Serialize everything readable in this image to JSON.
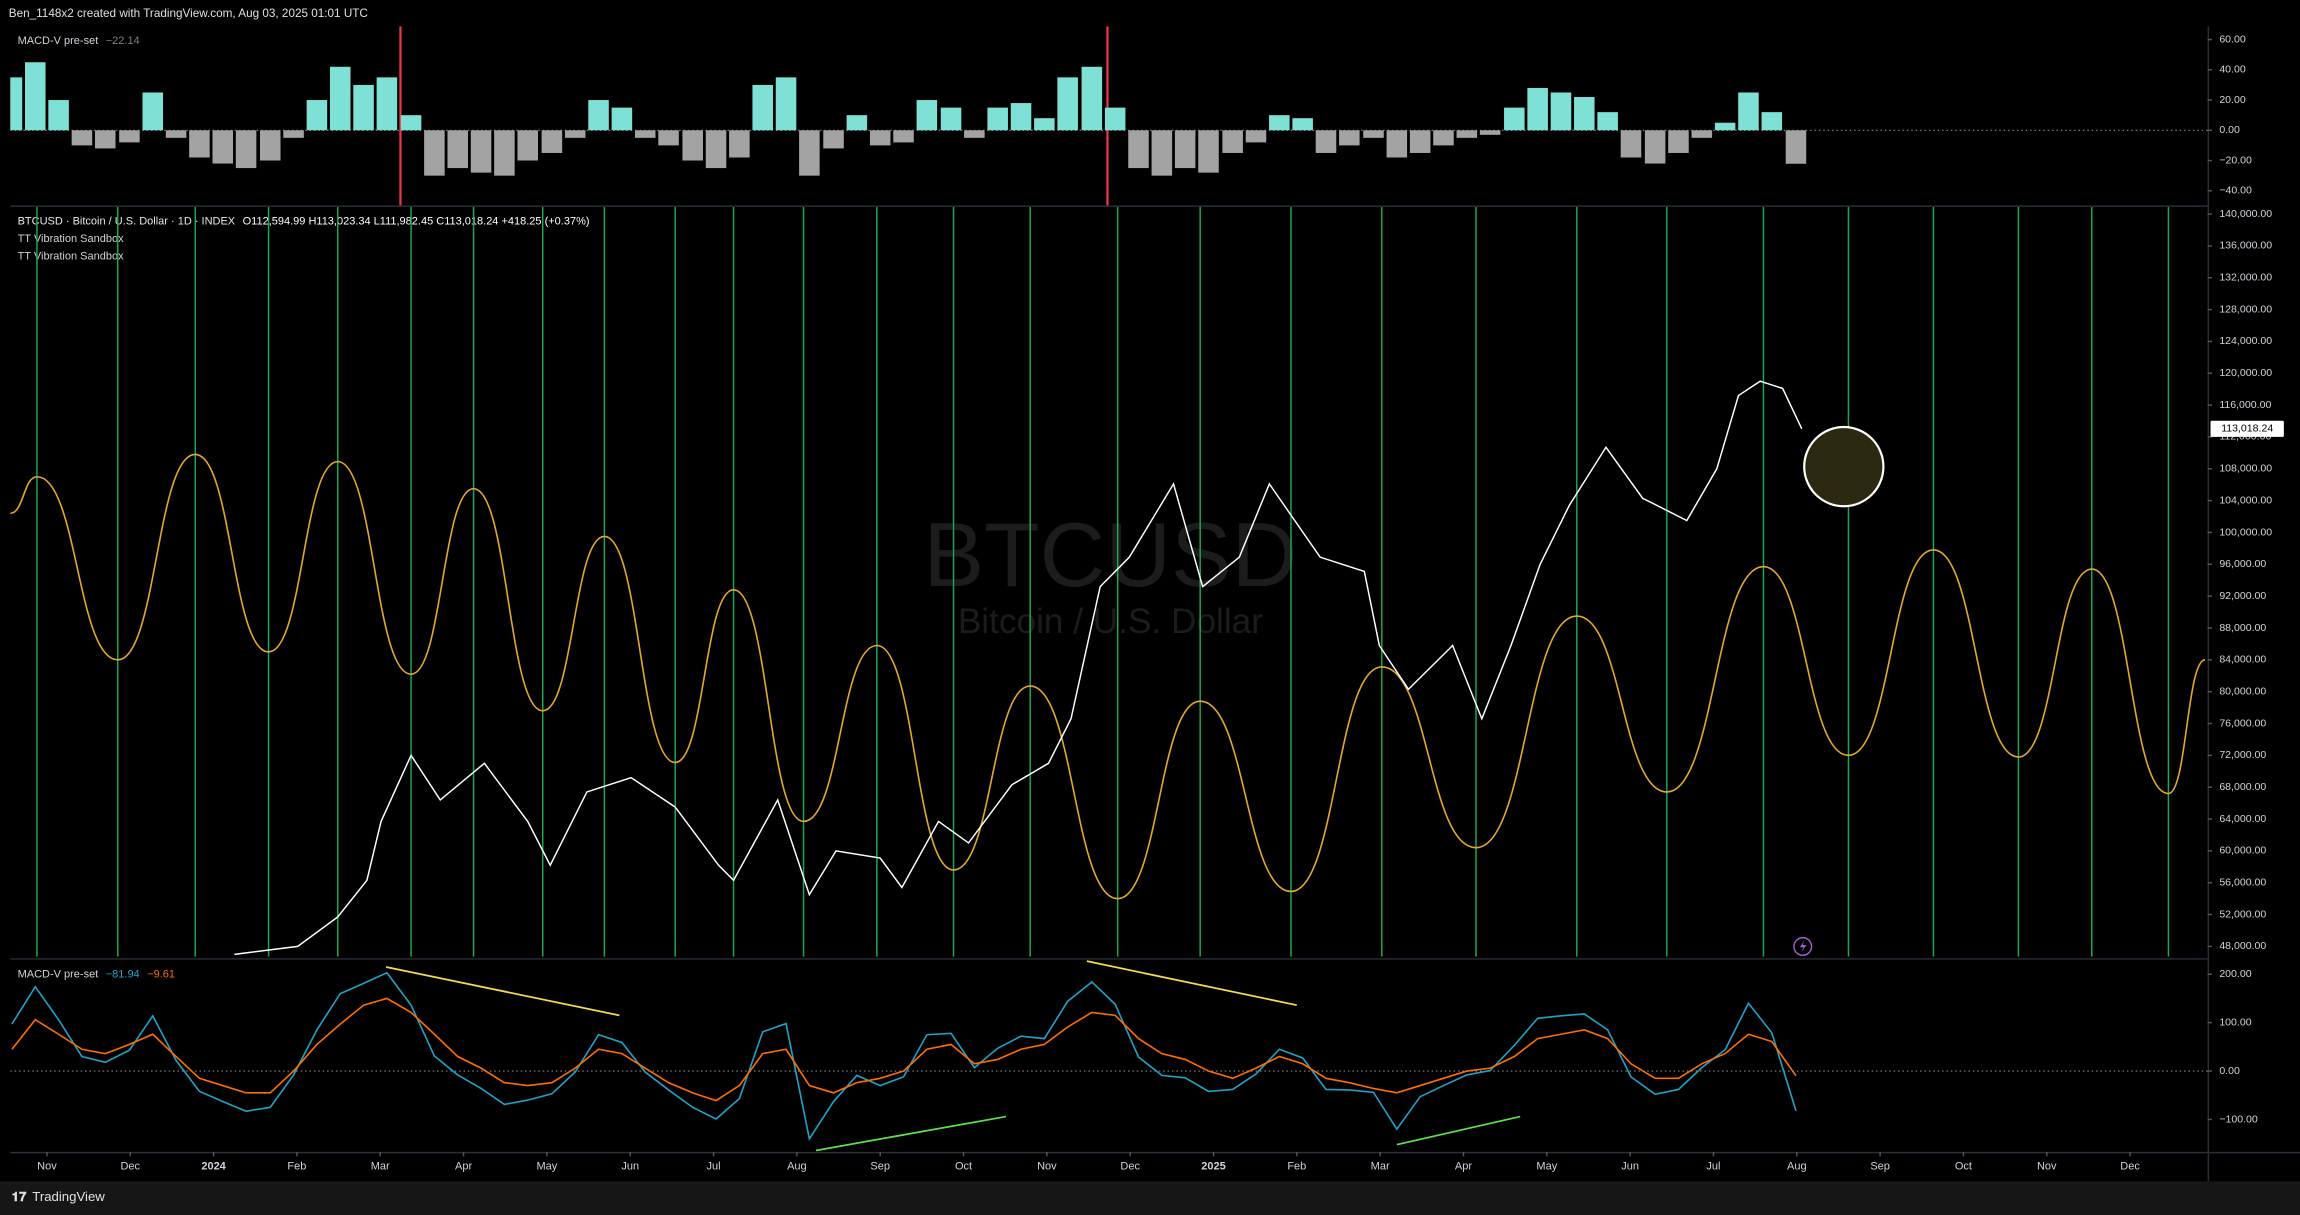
{
  "header": "Ben_1148x2 created with TradingView.com, Aug 03, 2025 01:01 UTC",
  "footer": "TradingView",
  "chart_data": [
    {
      "type": "bar",
      "title": "MACD-V pre-set",
      "last": {
        "value": -22.14,
        "label": "−22.14"
      },
      "colors": {
        "positive": "#7fe0d5",
        "negative": "#a3a3a3"
      },
      "xlim": [
        -0.44,
        25.93
      ],
      "ylim": [
        -49.7,
        68.7
      ],
      "yticks": [
        {
          "value": 60,
          "label": "60.00"
        },
        {
          "value": 40,
          "label": "40.00"
        },
        {
          "value": 20,
          "label": "20.00"
        },
        {
          "value": 0,
          "label": "0.00"
        },
        {
          "value": -20,
          "label": "−20.00"
        },
        {
          "value": -40,
          "label": "−40.00"
        }
      ],
      "x": [
        -0.42,
        -0.14,
        0.14,
        0.42,
        0.7,
        0.99,
        1.27,
        1.55,
        1.83,
        2.11,
        2.39,
        2.68,
        2.96,
        3.24,
        3.52,
        3.8,
        4.08,
        4.37,
        4.65,
        4.93,
        5.21,
        5.49,
        5.77,
        6.06,
        6.34,
        6.62,
        6.9,
        7.18,
        7.46,
        7.75,
        8.03,
        8.31,
        8.59,
        8.87,
        9.15,
        9.44,
        9.72,
        10.0,
        10.28,
        10.56,
        10.85,
        11.13,
        11.41,
        11.69,
        11.97,
        12.25,
        12.54,
        12.82,
        13.1,
        13.38,
        13.66,
        13.94,
        14.23,
        14.51,
        14.79,
        15.07,
        15.35,
        15.63,
        15.92,
        16.2,
        16.48,
        16.76,
        17.04,
        17.32,
        17.61,
        17.89,
        18.17,
        18.45,
        18.73,
        19.01,
        19.3,
        19.58,
        19.86,
        20.14,
        20.42,
        20.7,
        20.99
      ],
      "values": [
        35,
        45,
        20,
        -10,
        -12,
        -8,
        25,
        -5,
        -18,
        -22,
        -25,
        -20,
        -5,
        20,
        42,
        30,
        35,
        10,
        -30,
        -25,
        -28,
        -30,
        -20,
        -15,
        -5,
        20,
        15,
        -5,
        -10,
        -20,
        -25,
        -18,
        30,
        35,
        -30,
        -12,
        10,
        -10,
        -8,
        20,
        15,
        -5,
        15,
        18,
        8,
        35,
        42,
        15,
        -25,
        -30,
        -25,
        -28,
        -15,
        -8,
        10,
        8,
        -15,
        -10,
        -5,
        -18,
        -15,
        -10,
        -5,
        -3,
        15,
        28,
        25,
        22,
        12,
        -18,
        -22,
        -15,
        -5,
        5,
        25,
        12,
        -22.14
      ]
    },
    {
      "type": "line",
      "symbol": "BTCUSD · Bitcoin / U.S. Dollar · 1D · INDEX",
      "ohlc": "O112,594.99 H113,023.34 L111,982.45 C113,018.24 +418.25 (+0.37%)",
      "watermark": [
        "BTCUSD",
        "Bitcoin / U.S. Dollar"
      ],
      "xlim": [
        -0.44,
        25.93
      ],
      "ylim": [
        46700,
        140900
      ],
      "yticks": [
        {
          "value": 48000,
          "label": "48,000.00"
        },
        {
          "value": 52000,
          "label": "52,000.00"
        },
        {
          "value": 56000,
          "label": "56,000.00"
        },
        {
          "value": 60000,
          "label": "60,000.00"
        },
        {
          "value": 64000,
          "label": "64,000.00"
        },
        {
          "value": 68000,
          "label": "68,000.00"
        },
        {
          "value": 72000,
          "label": "72,000.00"
        },
        {
          "value": 76000,
          "label": "76,000.00"
        },
        {
          "value": 80000,
          "label": "80,000.00"
        },
        {
          "value": 84000,
          "label": "84,000.00"
        },
        {
          "value": 88000,
          "label": "88,000.00"
        },
        {
          "value": 92000,
          "label": "92,000.00"
        },
        {
          "value": 96000,
          "label": "96,000.00"
        },
        {
          "value": 100000,
          "label": "100,000.00"
        },
        {
          "value": 104000,
          "label": "104,000.00"
        },
        {
          "value": 108000,
          "label": "108,000.00"
        },
        {
          "value": 112000,
          "label": "112,000.00"
        },
        {
          "value": 116000,
          "label": "116,000.00"
        },
        {
          "value": 120000,
          "label": "120,000.00"
        },
        {
          "value": 124000,
          "label": "124,000.00"
        },
        {
          "value": 128000,
          "label": "128,000.00"
        },
        {
          "value": 132000,
          "label": "132,000.00"
        },
        {
          "value": 136000,
          "label": "136,000.00"
        },
        {
          "value": 140000,
          "label": "140,000.00"
        }
      ],
      "price": {
        "color": "#ffffff",
        "x": [
          2.25,
          3.01,
          3.49,
          3.84,
          4.01,
          4.37,
          4.72,
          5.25,
          5.77,
          6.04,
          6.48,
          7.01,
          7.54,
          8.06,
          8.24,
          8.77,
          9.15,
          9.47,
          10.0,
          10.26,
          10.7,
          11.06,
          11.58,
          12.02,
          12.29,
          12.64,
          12.99,
          13.52,
          13.87,
          14.31,
          14.67,
          15.28,
          15.81,
          15.99,
          16.34,
          16.87,
          17.22,
          17.57,
          17.92,
          18.27,
          18.71,
          19.15,
          19.68,
          20.04,
          20.3,
          20.56,
          20.83,
          21.06
        ],
        "values": [
          47000,
          48000,
          51700,
          56300,
          63700,
          72000,
          66400,
          71000,
          63700,
          58200,
          67400,
          69200,
          65500,
          58200,
          56300,
          66400,
          54500,
          60000,
          59100,
          55400,
          63700,
          61000,
          68300,
          71000,
          76600,
          93200,
          96900,
          106100,
          93200,
          96900,
          106100,
          96900,
          95100,
          85800,
          80300,
          85800,
          76600,
          85800,
          96000,
          103400,
          110700,
          104300,
          101500,
          108000,
          117200,
          119000,
          118100,
          113018.24
        ],
        "last": {
          "value": 113018.24,
          "label": "113,018.24"
        }
      },
      "series": [
        {
          "name": "TT Vibration Sandbox",
          "color": "#e3a82b",
          "smooth": true,
          "x": [
            -0.44,
            -0.12,
            0.85,
            1.78,
            2.66,
            3.49,
            4.37,
            5.12,
            5.95,
            6.69,
            7.54,
            8.24,
            9.08,
            9.96,
            10.88,
            11.8,
            12.85,
            13.84,
            14.93,
            16.02,
            17.15,
            18.36,
            19.44,
            20.6,
            21.62,
            22.64,
            23.66,
            24.54,
            25.46,
            25.9
          ],
          "values": [
            102400,
            107000,
            84000,
            109800,
            85000,
            108900,
            82200,
            105500,
            77600,
            99500,
            71100,
            92800,
            63700,
            85800,
            57600,
            80700,
            54000,
            78800,
            54900,
            83100,
            60400,
            89500,
            67400,
            95700,
            72000,
            97800,
            71800,
            95400,
            67200,
            84000
          ]
        },
        {
          "name": "TT Vibration Sandbox",
          "color": "#1fa84f",
          "x": [
            -0.12,
            0.85,
            1.78,
            2.66,
            3.49,
            4.37,
            5.12,
            5.95,
            6.69,
            7.54,
            8.24,
            9.08,
            9.96,
            10.88,
            11.8,
            12.85,
            13.84,
            14.93,
            16.02,
            17.15,
            18.36,
            19.44,
            20.6,
            21.62,
            22.64,
            23.66,
            24.54,
            25.46
          ]
        }
      ]
    },
    {
      "type": "line",
      "title": "MACD-V pre-set",
      "xlim": [
        -0.44,
        25.93
      ],
      "ylim": [
        -167,
        227
      ],
      "yticks": [
        {
          "value": 200,
          "label": "200.00"
        },
        {
          "value": 100,
          "label": "100.00"
        },
        {
          "value": 0,
          "label": "0.00"
        },
        {
          "value": -100,
          "label": "−100.00"
        }
      ],
      "xticks": [
        {
          "value": 0,
          "label": "Nov"
        },
        {
          "value": 1,
          "label": "Dec"
        },
        {
          "value": 2,
          "label": "2024"
        },
        {
          "value": 3,
          "label": "Feb"
        },
        {
          "value": 4,
          "label": "Mar"
        },
        {
          "value": 5,
          "label": "Apr"
        },
        {
          "value": 6,
          "label": "May"
        },
        {
          "value": 7,
          "label": "Jun"
        },
        {
          "value": 8,
          "label": "Jul"
        },
        {
          "value": 9,
          "label": "Aug"
        },
        {
          "value": 10,
          "label": "Sep"
        },
        {
          "value": 11,
          "label": "Oct"
        },
        {
          "value": 12,
          "label": "Nov"
        },
        {
          "value": 13,
          "label": "Dec"
        },
        {
          "value": 14,
          "label": "2025"
        },
        {
          "value": 15,
          "label": "Feb"
        },
        {
          "value": 16,
          "label": "Mar"
        },
        {
          "value": 17,
          "label": "Apr"
        },
        {
          "value": 18,
          "label": "May"
        },
        {
          "value": 19,
          "label": "Jun"
        },
        {
          "value": 20,
          "label": "Jul"
        },
        {
          "value": 21,
          "label": "Aug"
        },
        {
          "value": 22,
          "label": "Sep"
        },
        {
          "value": 23,
          "label": "Oct"
        },
        {
          "value": 24,
          "label": "Nov"
        },
        {
          "value": 25,
          "label": "Dec"
        }
      ],
      "series": [
        {
          "color": "#1fa2c7",
          "last": {
            "value": -81.94,
            "label": "−81.94"
          },
          "x": [
            -0.42,
            -0.14,
            0.14,
            0.42,
            0.7,
            0.99,
            1.27,
            1.55,
            1.83,
            2.11,
            2.39,
            2.68,
            2.96,
            3.24,
            3.52,
            3.8,
            4.08,
            4.37,
            4.65,
            4.93,
            5.21,
            5.49,
            5.77,
            6.06,
            6.34,
            6.62,
            6.9,
            7.18,
            7.46,
            7.75,
            8.03,
            8.31,
            8.59,
            8.87,
            9.15,
            9.44,
            9.72,
            10.0,
            10.28,
            10.56,
            10.85,
            11.13,
            11.41,
            11.69,
            11.97,
            12.25,
            12.54,
            12.82,
            13.1,
            13.38,
            13.66,
            13.94,
            14.23,
            14.51,
            14.79,
            15.07,
            15.35,
            15.63,
            15.92,
            16.2,
            16.48,
            16.76,
            17.04,
            17.32,
            17.61,
            17.89,
            18.17,
            18.45,
            18.73,
            19.01,
            19.3,
            19.58,
            19.86,
            20.14,
            20.42,
            20.7,
            20.99
          ],
          "values": [
            97,
            174,
            106,
            30,
            18,
            43,
            114,
            22,
            -42,
            -63,
            -83,
            -75,
            -8,
            85,
            160,
            181,
            203,
            136,
            31,
            -8,
            -36,
            -69,
            -60,
            -47,
            -2,
            75,
            59,
            -2,
            -39,
            -75,
            -99,
            -57,
            81,
            98,
            -140,
            -63,
            -9,
            -30,
            -12,
            75,
            78,
            7,
            47,
            72,
            67,
            144,
            184,
            138,
            29,
            -9,
            -14,
            -42,
            -38,
            -6,
            45,
            27,
            -38,
            -39,
            -44,
            -120,
            -53,
            -30,
            -8,
            1,
            53,
            109,
            114,
            118,
            85,
            -12,
            -48,
            -38,
            7,
            44,
            140,
            79,
            -81.94
          ]
        },
        {
          "color": "#ff6d00",
          "last": {
            "value": -9.61,
            "label": "−9.61"
          },
          "x": [
            -0.42,
            -0.14,
            0.14,
            0.42,
            0.7,
            0.99,
            1.27,
            1.55,
            1.83,
            2.11,
            2.39,
            2.68,
            2.96,
            3.24,
            3.52,
            3.8,
            4.08,
            4.37,
            4.65,
            4.93,
            5.21,
            5.49,
            5.77,
            6.06,
            6.34,
            6.62,
            6.9,
            7.18,
            7.46,
            7.75,
            8.03,
            8.31,
            8.59,
            8.87,
            9.15,
            9.44,
            9.72,
            10.0,
            10.28,
            10.56,
            10.85,
            11.13,
            11.41,
            11.69,
            11.97,
            12.25,
            12.54,
            12.82,
            13.1,
            13.38,
            13.66,
            13.94,
            14.23,
            14.51,
            14.79,
            15.07,
            15.35,
            15.63,
            15.92,
            16.2,
            16.48,
            16.76,
            17.04,
            17.32,
            17.61,
            17.89,
            18.17,
            18.45,
            18.73,
            19.01,
            19.3,
            19.58,
            19.86,
            20.14,
            20.42,
            20.7,
            20.99
          ],
          "values": [
            45,
            106,
            76,
            45,
            36,
            55,
            76,
            30,
            -15,
            -30,
            -45,
            -45,
            0,
            55,
            97,
            136,
            150,
            121,
            76,
            30,
            6,
            -24,
            -30,
            -24,
            6,
            45,
            36,
            6,
            -24,
            -45,
            -61,
            -30,
            36,
            45,
            -30,
            -45,
            -24,
            -15,
            0,
            45,
            55,
            15,
            24,
            45,
            55,
            91,
            121,
            115,
            67,
            36,
            24,
            0,
            -15,
            6,
            30,
            15,
            -15,
            -24,
            -36,
            -45,
            -30,
            -15,
            0,
            6,
            30,
            67,
            76,
            85,
            67,
            15,
            -15,
            -15,
            15,
            36,
            76,
            61,
            -9.61
          ]
        }
      ],
      "trendlines": [
        {
          "color": "#f5d94e",
          "x": [
            4.07,
            6.87
          ],
          "values": [
            215,
            115
          ]
        },
        {
          "color": "#f5d94e",
          "x": [
            12.48,
            15.0
          ],
          "values": [
            227,
            136
          ]
        },
        {
          "color": "#5ee04e",
          "x": [
            9.23,
            11.51
          ],
          "values": [
            -164,
            -94
          ]
        },
        {
          "color": "#5ee04e",
          "x": [
            16.2,
            17.68
          ],
          "values": [
            -152,
            -94
          ]
        }
      ]
    }
  ]
}
